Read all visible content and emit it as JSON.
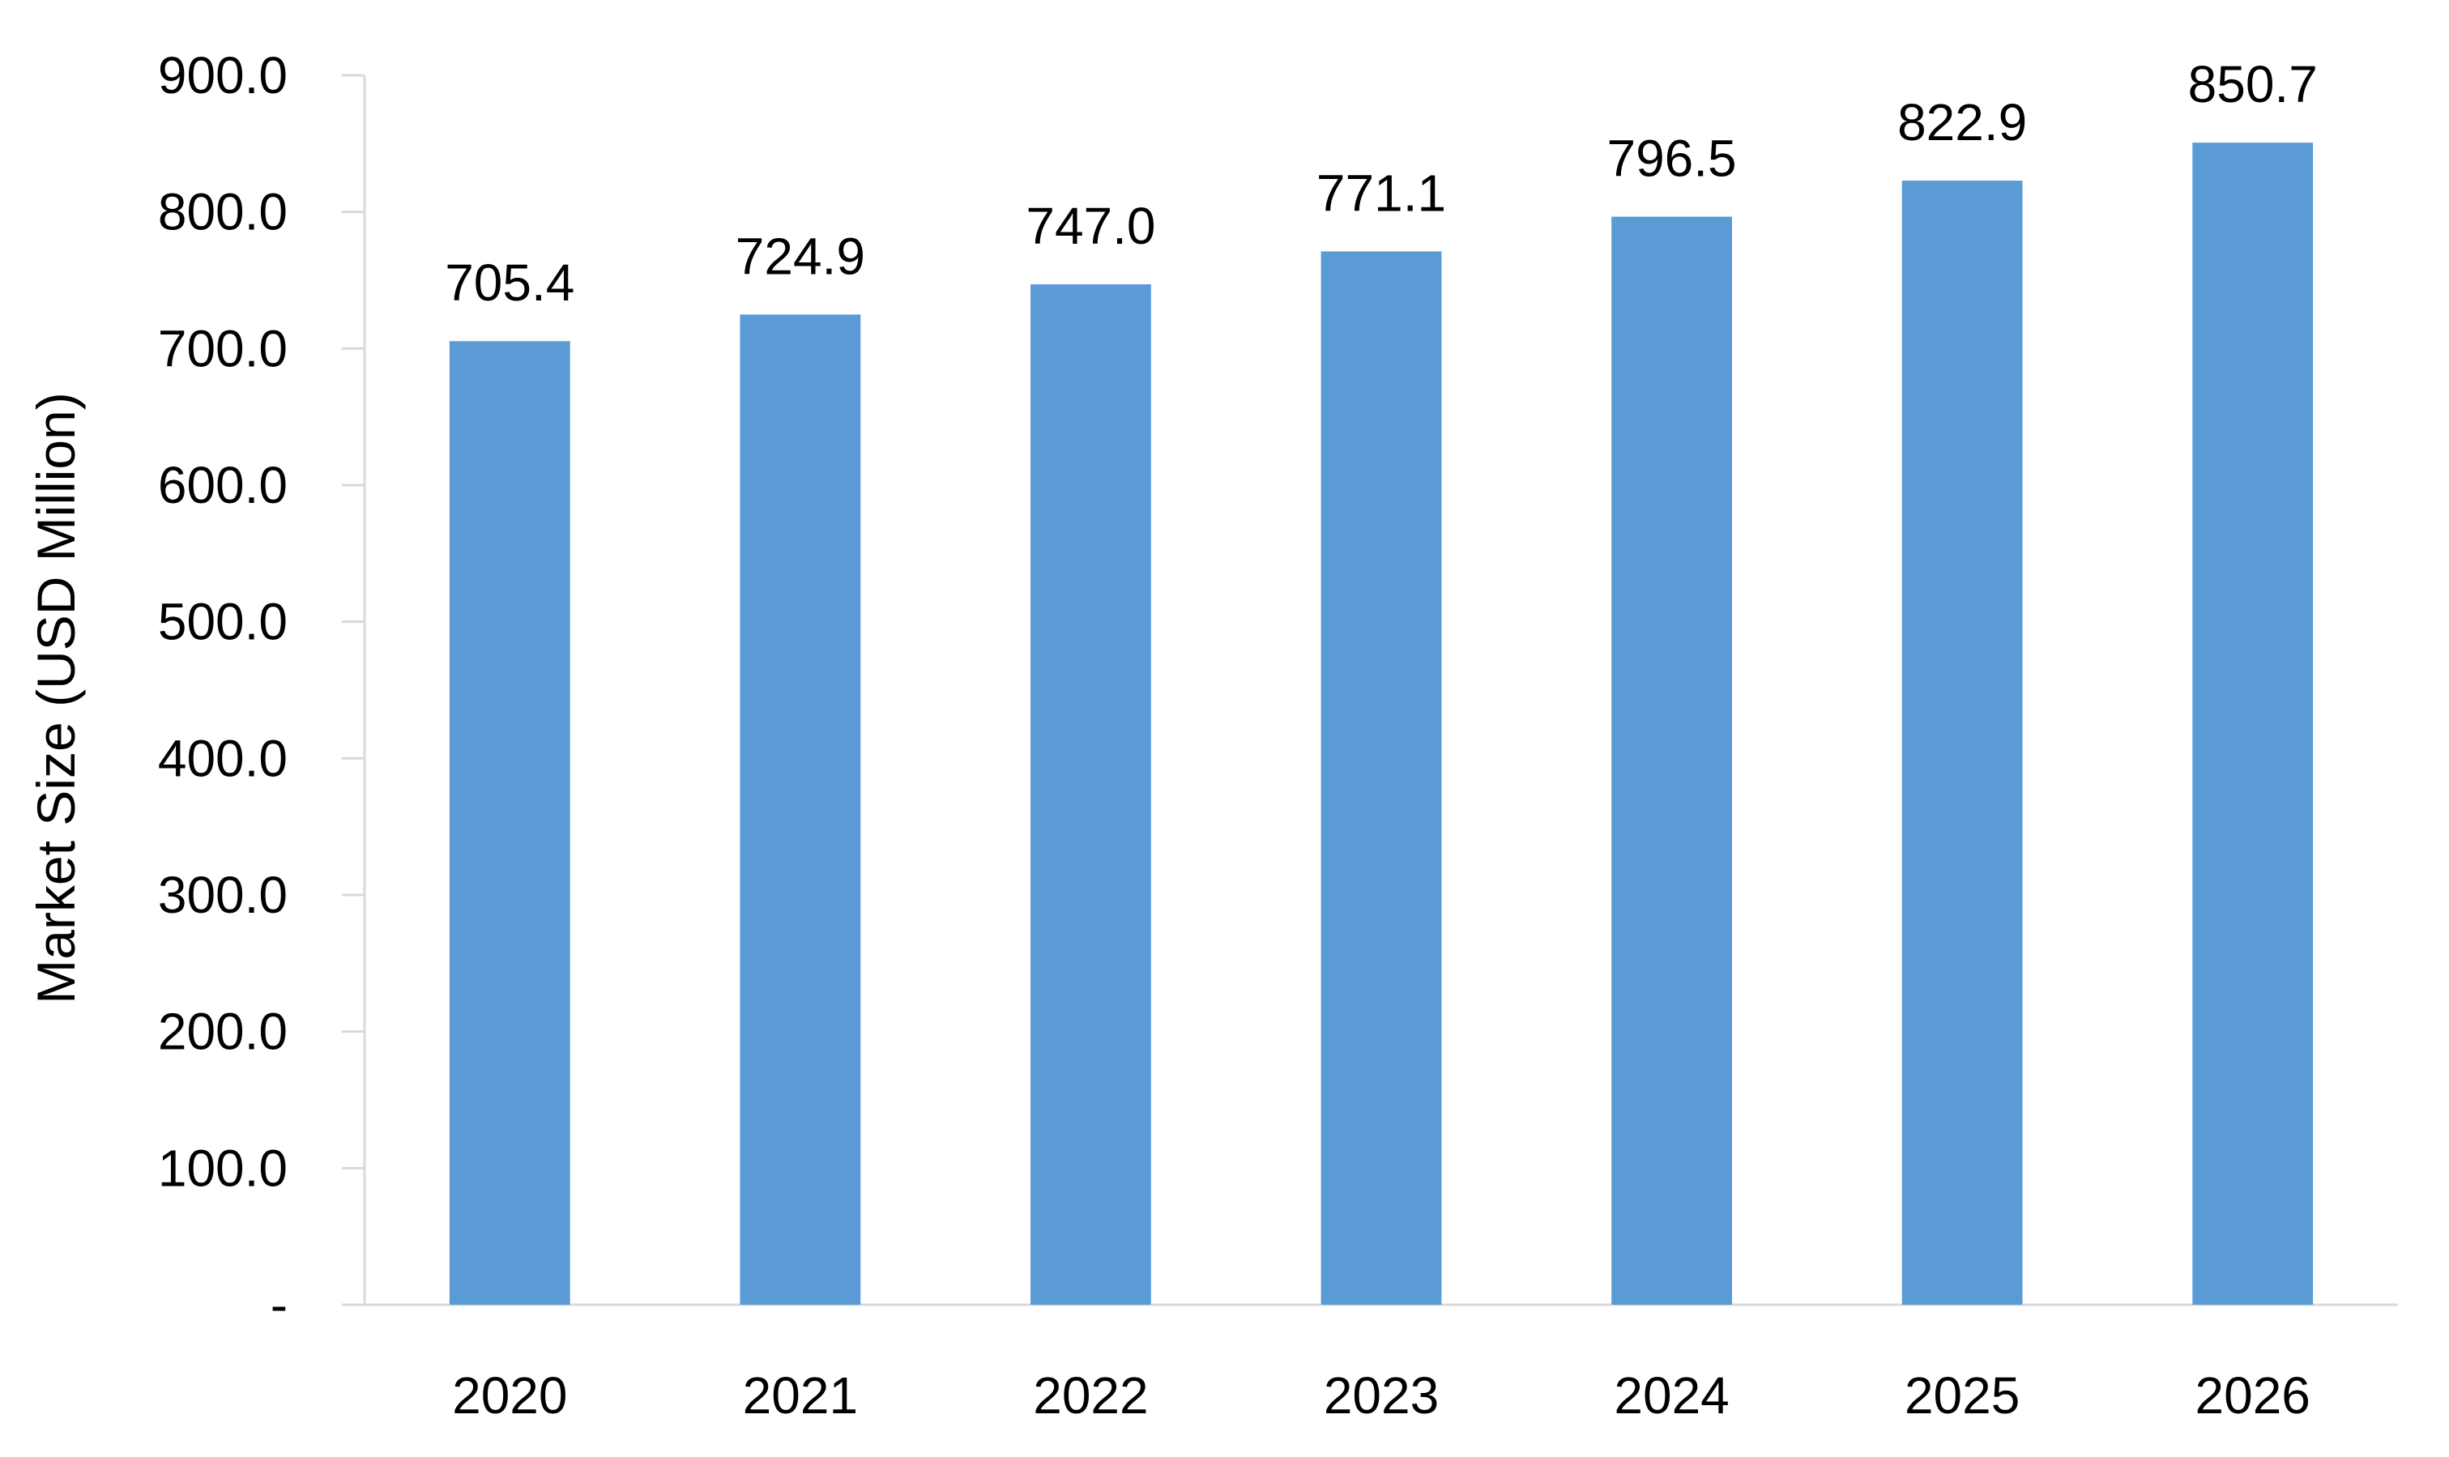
{
  "chart_data": {
    "type": "bar",
    "title": "",
    "xlabel": "",
    "ylabel": "Market Size (USD Million)",
    "categories": [
      "2020",
      "2021",
      "2022",
      "2023",
      "2024",
      "2025",
      "2026"
    ],
    "values": [
      705.4,
      724.9,
      747.0,
      771.1,
      796.5,
      822.9,
      850.7
    ],
    "data_labels": [
      "705.4",
      "724.9",
      "747.0",
      "771.1",
      "796.5",
      "822.9",
      "850.7"
    ],
    "ylim": [
      0,
      900
    ],
    "y_ticks": [
      0,
      100,
      200,
      300,
      400,
      500,
      600,
      700,
      800,
      900
    ],
    "y_tick_labels": [
      "-",
      "100.0",
      "200.0",
      "300.0",
      "400.0",
      "500.0",
      "600.0",
      "700.0",
      "800.0",
      "900.0"
    ],
    "grid": false,
    "legend": "none",
    "bar_color": "#5B9BD5",
    "axis_color": "#D9D9D9"
  }
}
